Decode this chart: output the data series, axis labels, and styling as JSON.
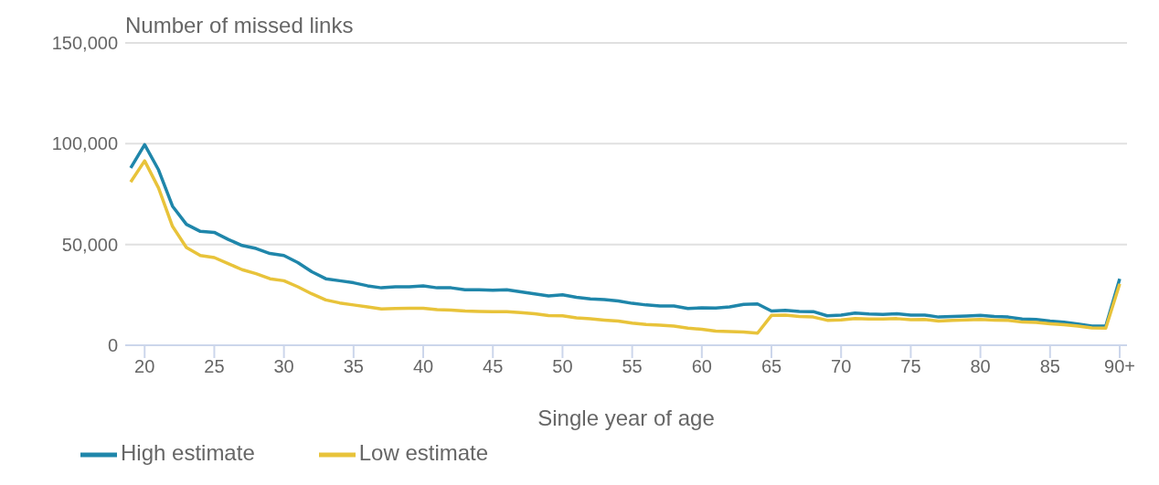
{
  "chart_data": {
    "type": "line",
    "xlabel": "Single year of age",
    "ylabel": "Number of missed links",
    "categories": [
      null,
      "20",
      null,
      null,
      null,
      null,
      "25",
      null,
      null,
      null,
      null,
      "30",
      null,
      null,
      null,
      null,
      "35",
      null,
      null,
      null,
      null,
      "40",
      null,
      null,
      null,
      null,
      "45",
      null,
      null,
      null,
      null,
      "50",
      null,
      null,
      null,
      null,
      "55",
      null,
      null,
      null,
      null,
      "60",
      null,
      null,
      null,
      null,
      "65",
      null,
      null,
      null,
      null,
      "70",
      null,
      null,
      null,
      null,
      "75",
      null,
      null,
      null,
      null,
      "80",
      null,
      null,
      null,
      null,
      "85",
      null,
      null,
      null,
      null,
      "90+"
    ],
    "series": [
      {
        "name": "High estimate",
        "color": "#1f86aa",
        "values": [
          88000,
          99500,
          87000,
          69000,
          60000,
          56500,
          56000,
          52500,
          49500,
          48000,
          45500,
          44500,
          41000,
          36500,
          33000,
          32000,
          31000,
          29500,
          28500,
          29000,
          29000,
          29500,
          28500,
          28500,
          27500,
          27500,
          27300,
          27500,
          26500,
          25500,
          24500,
          25000,
          23800,
          23000,
          22700,
          22000,
          20800,
          20000,
          19500,
          19500,
          18200,
          18600,
          18500,
          19000,
          20300,
          20500,
          17000,
          17300,
          16800,
          16700,
          14600,
          15000,
          16000,
          15500,
          15300,
          15600,
          15000,
          15000,
          14000,
          14300,
          14500,
          14800,
          14300,
          14000,
          13000,
          12800,
          12000,
          11500,
          10500,
          9500,
          9500,
          33000
        ]
      },
      {
        "name": "Low estimate",
        "color": "#e8c33a",
        "values": [
          81000,
          91500,
          78000,
          59000,
          48500,
          44500,
          43500,
          40500,
          37500,
          35500,
          33000,
          32000,
          29000,
          25500,
          22500,
          21000,
          20000,
          19000,
          18000,
          18200,
          18300,
          18400,
          17700,
          17500,
          17000,
          16800,
          16700,
          16600,
          16200,
          15600,
          14700,
          14600,
          13600,
          13100,
          12500,
          12000,
          11000,
          10300,
          10000,
          9500,
          8500,
          7900,
          7000,
          6800,
          6600,
          6000,
          14800,
          15000,
          14300,
          14000,
          12400,
          12600,
          13300,
          13000,
          13000,
          13200,
          12700,
          12800,
          12000,
          12400,
          12600,
          12800,
          12500,
          12300,
          11500,
          11300,
          10700,
          10200,
          9500,
          8600,
          8500,
          30500
        ]
      }
    ],
    "ylim": [
      0,
      150000
    ],
    "yticks": [
      {
        "value": 0,
        "label": "0"
      },
      {
        "value": 50000,
        "label": "50,000"
      },
      {
        "value": 100000,
        "label": "100,000"
      },
      {
        "value": 150000,
        "label": "150,000"
      }
    ],
    "grid": "y",
    "legend": "bottom left",
    "marker": "none",
    "line_style": "solid"
  }
}
